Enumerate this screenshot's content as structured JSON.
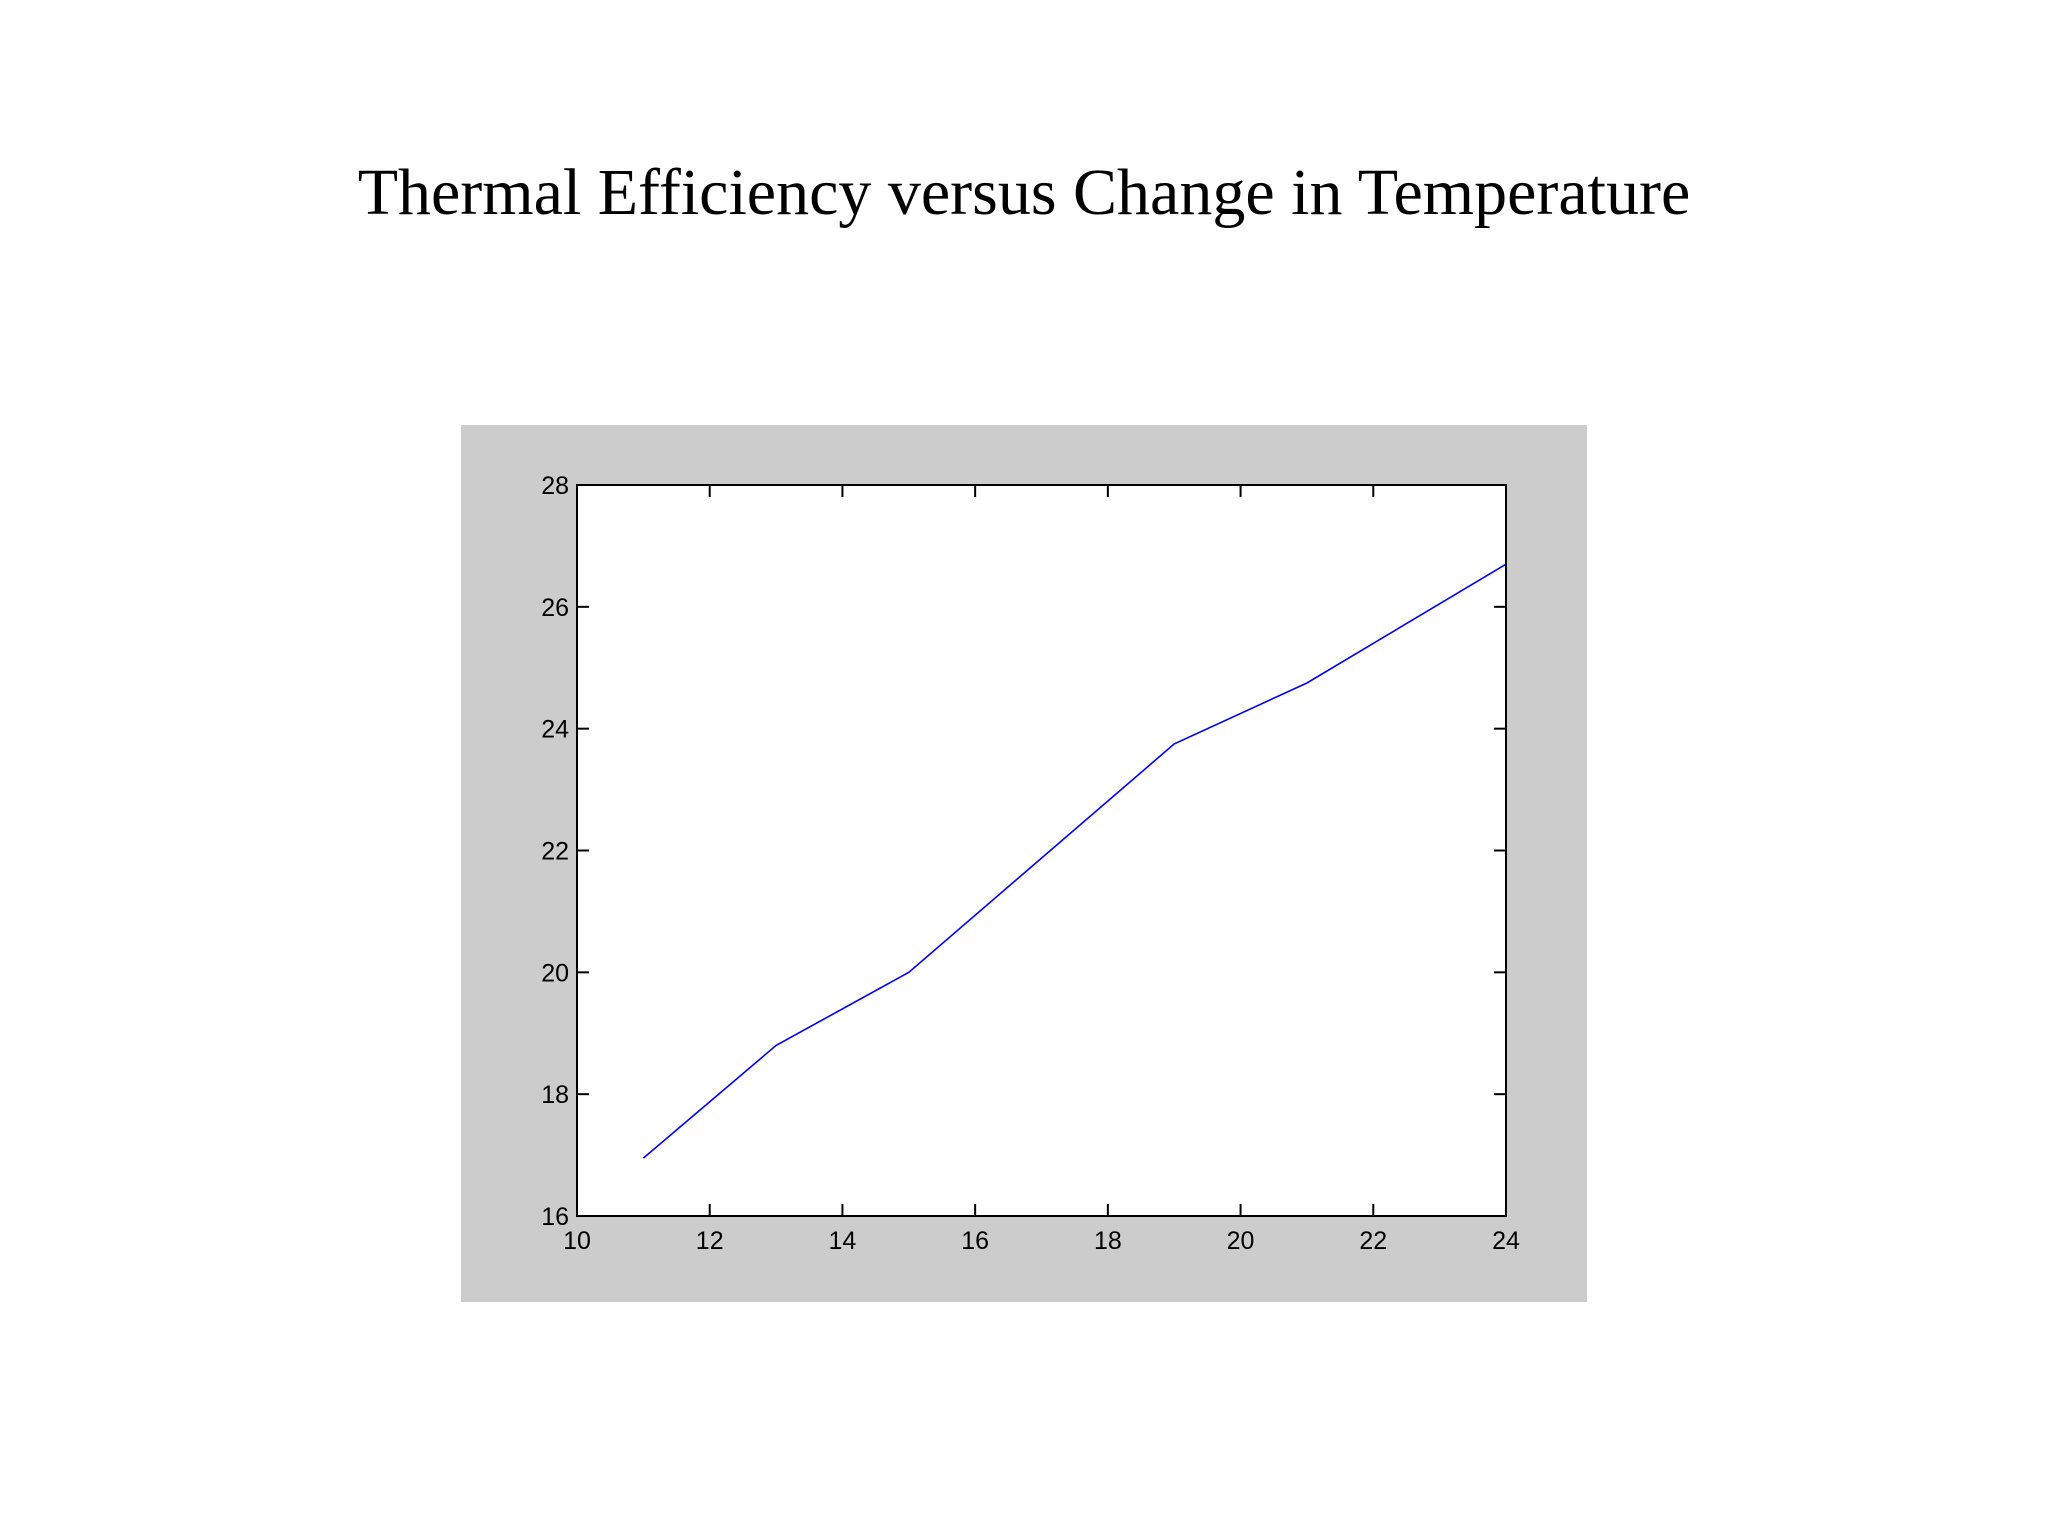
{
  "page": {
    "title": "Thermal Efficiency versus Change in Temperature"
  },
  "colors": {
    "background": "#ffffff",
    "figure_background": "#cccccc",
    "axes_background": "#ffffff",
    "axis_color": "#000000",
    "line_color": "#0000ff"
  },
  "chart_data": {
    "type": "line",
    "title": "",
    "xlabel": "",
    "ylabel": "",
    "xlim": [
      10,
      24
    ],
    "ylim": [
      16,
      28
    ],
    "xticks": [
      10,
      12,
      14,
      16,
      18,
      20,
      22,
      24
    ],
    "yticks": [
      16,
      18,
      20,
      22,
      24,
      26,
      28
    ],
    "grid": false,
    "legend": "none",
    "series": [
      {
        "x": [
          11,
          13,
          15,
          19,
          21,
          24
        ],
        "y": [
          16.95,
          18.8,
          20.0,
          23.75,
          24.75,
          26.7
        ]
      }
    ]
  }
}
